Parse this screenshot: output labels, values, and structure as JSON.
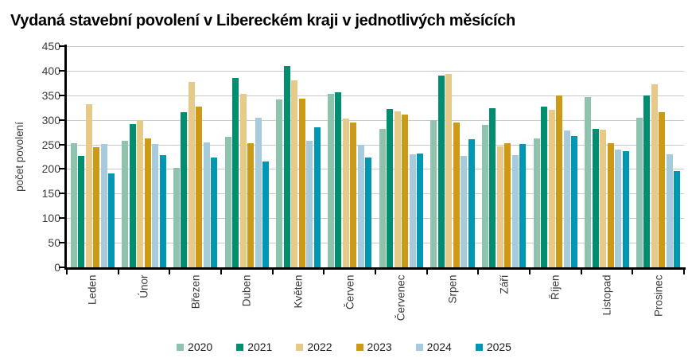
{
  "chart_data": {
    "type": "bar",
    "title": "Vydaná stavební povolení v Libereckém kraji v jednotlivých měsících",
    "xlabel": "",
    "ylabel": "počet povolení",
    "ylim": [
      0,
      450
    ],
    "yticks": [
      0,
      50,
      100,
      150,
      200,
      250,
      300,
      350,
      400,
      450
    ],
    "grid": true,
    "legend_position": "bottom",
    "categories": [
      "Leden",
      "Únor",
      "Březen",
      "Duben",
      "Květen",
      "Červen",
      "Červenec",
      "Srpen",
      "Září",
      "Říjen",
      "Listopad",
      "Prosinec"
    ],
    "series": [
      {
        "name": "2020",
        "color": "#8ec4ae",
        "values": [
          253,
          258,
          202,
          266,
          341,
          353,
          281,
          300,
          290,
          263,
          347,
          304
        ]
      },
      {
        "name": "2021",
        "color": "#008f6e",
        "values": [
          226,
          292,
          316,
          385,
          409,
          356,
          322,
          390,
          324,
          327,
          281,
          350
        ]
      },
      {
        "name": "2022",
        "color": "#e7c988",
        "values": [
          332,
          300,
          377,
          353,
          380,
          302,
          318,
          393,
          246,
          320,
          280,
          372
        ]
      },
      {
        "name": "2023",
        "color": "#cc9a16",
        "values": [
          245,
          262,
          327,
          253,
          343,
          295,
          311,
          295,
          252,
          349,
          252,
          316
        ]
      },
      {
        "name": "2024",
        "color": "#a5cbdd",
        "values": [
          251,
          251,
          254,
          305,
          257,
          250,
          230,
          226,
          228,
          278,
          239,
          230
        ]
      },
      {
        "name": "2025",
        "color": "#0097b4",
        "values": [
          191,
          229,
          224,
          216,
          285,
          224,
          232,
          260,
          251,
          267,
          237,
          196
        ]
      }
    ]
  }
}
